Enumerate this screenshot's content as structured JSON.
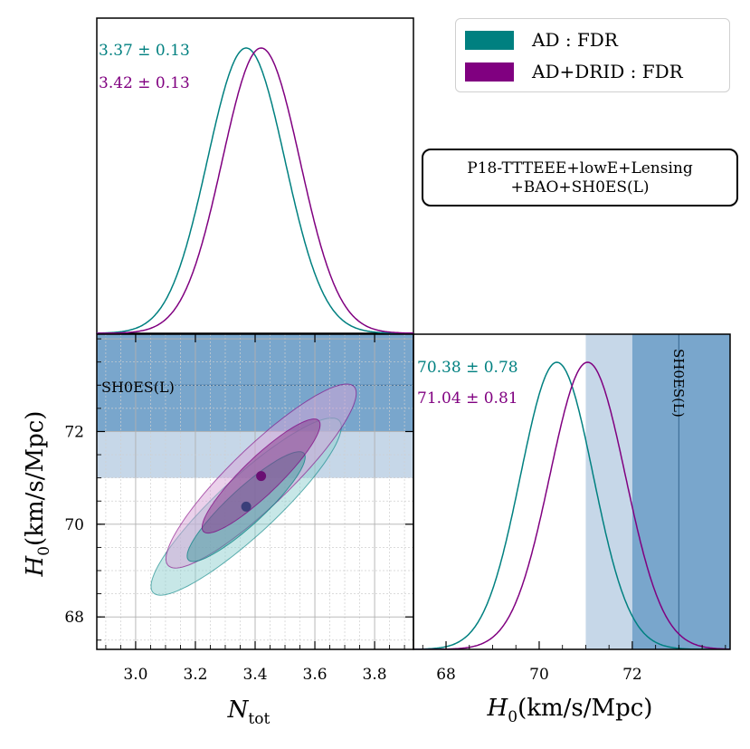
{
  "legend": {
    "items": [
      {
        "label": "AD : FDR",
        "color": "#008080"
      },
      {
        "label": "AD+DRID : FDR",
        "color": "#800080"
      }
    ]
  },
  "info_box": {
    "line1": "P18-TTTEEE+lowE+Lensing",
    "line2": "+BAO+SH0ES(L)"
  },
  "labels": {
    "ntot_ad": "3.37 ± 0.13",
    "ntot_drid": "3.42 ± 0.13",
    "h0_ad": "70.38 ± 0.78",
    "h0_drid": "71.04 ± 0.81",
    "sh0es_h": "SH0ES(L)",
    "sh0es_v": "SH0ES(L)",
    "xlabel_left": "N",
    "xlabel_left_sub": "tot",
    "xlabel_right": "H",
    "xlabel_right_sub": "0",
    "xlabel_right_units": "(km/s/Mpc)",
    "ylabel": "H",
    "ylabel_sub": "0",
    "ylabel_units": "(km/s/Mpc)"
  },
  "colors": {
    "teal": "#008080",
    "purple": "#800080",
    "sh0es_dark": "#79a6cc",
    "sh0es_light": "#c6d7e8",
    "grid": "#b0b0b0"
  },
  "chart_data": [
    {
      "type": "line",
      "panel": "N_tot marginal",
      "x_axis": "N_tot",
      "xlim": [
        2.87,
        3.93
      ],
      "series": [
        {
          "name": "AD : FDR",
          "mean": 3.37,
          "sigma": 0.13
        },
        {
          "name": "AD+DRID : FDR",
          "mean": 3.42,
          "sigma": 0.13
        }
      ]
    },
    {
      "type": "scatter",
      "panel": "N_tot vs H0 contours",
      "xlabel": "N_tot",
      "ylabel": "H_0(km/s/Mpc)",
      "xlim": [
        2.87,
        3.93
      ],
      "ylim": [
        67.3,
        74.1
      ],
      "x_ticks": [
        "3.0",
        "3.2",
        "3.4",
        "3.6",
        "3.8"
      ],
      "y_ticks": [
        "68",
        "70",
        "72"
      ],
      "grid": true,
      "bands": [
        {
          "name": "SH0ES(L)",
          "center": 73.0,
          "inner": [
            72.0,
            74.1
          ],
          "outer": [
            71.0,
            72.0
          ]
        }
      ],
      "series": [
        {
          "name": "AD : FDR",
          "center": [
            3.37,
            70.38
          ],
          "sx": 0.13,
          "sy": 0.78,
          "rho": 0.9
        },
        {
          "name": "AD+DRID : FDR",
          "center": [
            3.42,
            71.04
          ],
          "sx": 0.13,
          "sy": 0.81,
          "rho": 0.9
        }
      ]
    },
    {
      "type": "line",
      "panel": "H0 marginal",
      "xlabel": "H_0(km/s/Mpc)",
      "xlim": [
        67.3,
        74.1
      ],
      "x_ticks": [
        "68",
        "70",
        "72"
      ],
      "bands": [
        {
          "name": "SH0ES(L)",
          "center": 73.0,
          "inner": [
            72.0,
            74.1
          ],
          "outer": [
            71.0,
            72.0
          ]
        }
      ],
      "series": [
        {
          "name": "AD : FDR",
          "mean": 70.38,
          "sigma": 0.78
        },
        {
          "name": "AD+DRID : FDR",
          "mean": 71.04,
          "sigma": 0.81
        }
      ]
    }
  ]
}
